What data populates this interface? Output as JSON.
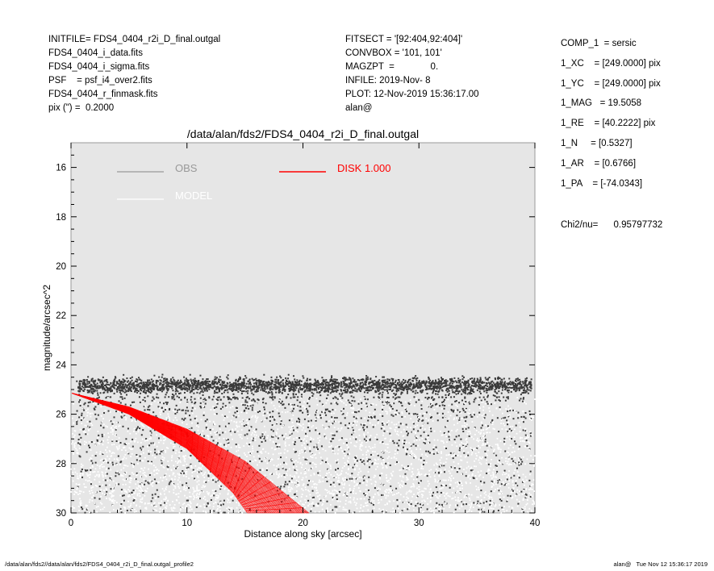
{
  "header": {
    "left_lines": [
      "INITFILE= FDS4_0404_r2i_D_final.outgal",
      "FDS4_0404_i_data.fits",
      "FDS4_0404_i_sigma.fits",
      "PSF    = psf_i4_over2.fits",
      "FDS4_0404_r_finmask.fits",
      "pix (\") =  0.2000"
    ],
    "mid_lines": [
      "FITSECT = '[92:404,92:404]'",
      "CONVBOX = '101, 101'",
      "MAGZPT  =              0.",
      "INFILE: 2019-Nov- 8",
      "PLOT: 12-Nov-2019 15:36:17.00",
      "alan@"
    ]
  },
  "params": [
    "COMP_1  = sersic",
    "1_XC    = [249.0000] pix",
    "1_YC    = [249.0000] pix",
    "1_MAG   = 19.5058",
    "1_RE    = [40.2222] pix",
    "1_N     = [0.5327]",
    "1_AR    = [0.6766]",
    "1_PA    = [-74.0343]"
  ],
  "chi2": "Chi2/nu=      0.95797732",
  "footer": {
    "left": "/data/alan/fds2//data/alan/fds2/FDS4_0404_r2i_D_final.outgal_profile2",
    "right": "alan@   Tue Nov 12 15:36:17 2019"
  },
  "colors": {
    "plot_bg": "#e6e6e6",
    "obs": "#999999",
    "model": "#ffffff",
    "disk": "#ff0000",
    "points_dark": "#3a3a3a",
    "points_light": "#ffffff"
  },
  "chart_data": {
    "type": "scatter",
    "title": "/data/alan/fds2/FDS4_0404_r2i_D_final.outgal",
    "xlabel": "Distance along sky [arcsec]",
    "ylabel": "magnitude/arcsec^2",
    "xlim": [
      0,
      40
    ],
    "ylim": [
      30,
      15
    ],
    "xticks": [
      0,
      10,
      20,
      30,
      40
    ],
    "yticks": [
      16,
      18,
      20,
      22,
      24,
      26,
      28,
      30
    ],
    "grid": false,
    "legend": [
      {
        "label": "OBS",
        "color": "#999999",
        "position": "top-left"
      },
      {
        "label": "MODEL",
        "color": "#ffffff",
        "position": "top-left"
      },
      {
        "label": "DISK  1.000",
        "color": "#ff0000",
        "position": "top-center"
      }
    ],
    "series": [
      {
        "kind": "points-dark",
        "description_band": {
          "x": [
            0,
            40
          ],
          "dense_y": [
            24.3,
            25.5
          ],
          "sparse_y": [
            25.5,
            30
          ]
        }
      },
      {
        "kind": "points-light",
        "description_band": {
          "x": [
            0,
            40
          ],
          "y": [
            25.2,
            30
          ]
        }
      },
      {
        "kind": "disk-fan",
        "start": {
          "x": 0.1,
          "y": 25.15
        },
        "inner_edge": [
          [
            0.1,
            25.15
          ],
          [
            5,
            26.0
          ],
          [
            10,
            27.4
          ],
          [
            14,
            29.2
          ],
          [
            15.2,
            30
          ]
        ],
        "outer_edge": [
          [
            0.1,
            25.15
          ],
          [
            5,
            25.7
          ],
          [
            10,
            26.6
          ],
          [
            15,
            27.9
          ],
          [
            20.5,
            30
          ]
        ]
      }
    ]
  }
}
